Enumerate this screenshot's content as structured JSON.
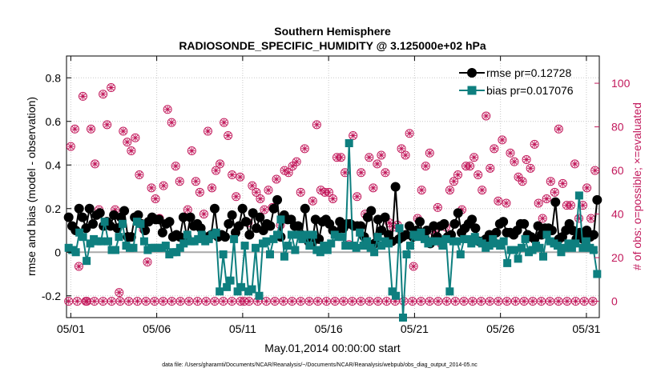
{
  "chart_data": {
    "type": "line",
    "title": "Southern Hemisphere",
    "subtitle": "RADIOSONDE_SPECIFIC_HUMIDITY @ 3.125000e+02 hPa",
    "xlabel": "May.01,2014 00:00:00 start",
    "ylabel": "rmse and bias (model - observation)",
    "ylabel_right": "# of obs: o=possible; ×=evaluated",
    "footnote": "data file: /Users/gharamti/Documents/NCAR/Reanalysis/~/Documents/NCAR/Reanalysis/webpub/obs_diag_output_2014-05.nc",
    "xlim": [
      0,
      124
    ],
    "ylim": [
      -0.3,
      0.9
    ],
    "ylim_right": [
      -7.5,
      112.5
    ],
    "x_tick_labels": [
      "05/01",
      "05/06",
      "05/11",
      "05/16",
      "05/21",
      "05/26",
      "05/31"
    ],
    "x_tick_positions": [
      1,
      21,
      41,
      61,
      81,
      101,
      121
    ],
    "y_tick_labels": [
      "-0.2",
      "0",
      "0.2",
      "0.4",
      "0.6",
      "0.8"
    ],
    "y_tick_values": [
      -0.2,
      0,
      0.2,
      0.4,
      0.6,
      0.8
    ],
    "y2_tick_labels": [
      "0",
      "20",
      "40",
      "60",
      "80",
      "100"
    ],
    "y2_tick_values": [
      0,
      20,
      40,
      60,
      80,
      100
    ],
    "zero_line": 0,
    "series": [
      {
        "name": "rmse",
        "legend": "rmse pr=0.12728",
        "color": "#000000",
        "values": [
          0.16,
          0.12,
          0.1,
          0.2,
          0.16,
          0.11,
          0.2,
          0.13,
          0.17,
          0.18,
          0.12,
          0.14,
          0.12,
          0.17,
          0.11,
          0.16,
          0.19,
          0.07,
          0.07,
          0.16,
          0.17,
          0.13,
          0.1,
          0.14,
          0.16,
          0.15,
          0.15,
          0.09,
          0.13,
          0.14,
          0.07,
          0.08,
          0.07,
          0.16,
          0.07,
          0.16,
          0.12,
          0.13,
          0.11,
          0.07,
          0.07,
          0.08,
          0.2,
          0.07,
          0.08,
          0.07,
          0.13,
          0.17,
          0.09,
          0.12,
          0.2,
          0.14,
          0.08,
          0.18,
          0.11,
          0.16,
          0.1,
          0.13,
          0.12,
          0.2,
          0.24,
          0.07,
          0.17,
          0.15,
          0.15,
          0.12,
          0.12,
          0.08,
          0.2,
          0.05,
          0.04,
          0.15,
          0.06,
          0.14,
          0.15,
          0.13,
          0.1,
          0.09,
          0.14,
          0.11,
          0.13,
          0.13,
          0.12,
          0.12,
          0.12,
          0.07,
          0.16,
          0.19,
          0.04,
          0.15,
          0.1,
          0.16,
          0.08,
          0.05,
          0.3,
          0.06,
          0.07,
          0.08,
          0.12,
          0.07,
          0.1,
          0.14,
          0.07,
          0.1,
          0.04,
          0.12,
          0.07,
          0.12,
          0.13,
          0.07,
          0.08,
          0.13,
          0.18,
          0.09,
          0.11,
          0.13,
          0.15,
          0.11,
          0.05,
          0.05,
          0.06,
          0.08,
          0.05,
          0.09,
          0.13,
          0.14,
          0.09,
          0.09,
          0.08,
          0.1,
          0.13,
          0.13,
          0.08,
          0.07,
          0.06,
          0.12,
          0.08,
          0.11,
          0.11,
          0.1,
          0.23,
          0.06,
          0.07,
          0.1,
          0.13,
          0.1,
          0.06,
          0.09,
          0.06,
          0.1,
          0.07,
          0.08,
          0.24
        ]
      },
      {
        "name": "bias",
        "legend": "bias pr=0.017076",
        "color": "#0e7f7f",
        "values": [
          0.02,
          0.01,
          0.0,
          0.09,
          0.07,
          -0.04,
          0.04,
          0.06,
          0.05,
          0.05,
          0.14,
          0.05,
          0.01,
          0.01,
          0.07,
          0.13,
          0.03,
          0.02,
          0.02,
          0.14,
          0.13,
          0.05,
          0.01,
          0.02,
          0.02,
          0.02,
          0.02,
          0.03,
          -0.01,
          0.0,
          0.0,
          0.02,
          0.04,
          0.08,
          0.05,
          0.05,
          0.06,
          0.08,
          0.05,
          0.06,
          0.08,
          0.09,
          -0.18,
          -0.01,
          -0.16,
          -0.13,
          0.06,
          -0.18,
          -0.16,
          0.03,
          -0.18,
          -0.17,
          0.02,
          -0.2,
          0.04,
          0.05,
          -0.01,
          0.06,
          0.08,
          0.15,
          -0.02,
          0.03,
          0.08,
          0.01,
          0.08,
          0.06,
          0.08,
          0.03,
          0.08,
          0.01,
          0.0,
          0.03,
          0.01,
          0.04,
          0.08,
          0.07,
          0.07,
          0.03,
          0.5,
          0.03,
          0.02,
          0.09,
          0.03,
          0.05,
          0.02,
          0.0,
          0.07,
          0.03,
          0.05,
          0.04,
          -0.18,
          -0.2,
          0.11,
          -0.3,
          -0.01,
          0.03,
          0.08,
          0.07,
          0.09,
          0.06,
          0.04,
          0.05,
          0.05,
          0.05,
          0.03,
          0.06,
          -0.18,
          0.05,
          0.05,
          -0.01,
          0.06,
          0.06,
          0.04,
          0.07,
          0.05,
          0.04,
          0.02,
          0.03,
          0.06,
          0.04,
          0.03,
          0.05,
          -0.05,
          0.01,
          0.01,
          -0.03,
          0.02,
          0.06,
          0.0,
          0.01,
          0.03,
          0.02,
          -0.02,
          0.08,
          0.05,
          0.04,
          0.03,
          0.0,
          0.02,
          0.04,
          0.02,
          0.04,
          0.26,
          0.02,
          0.05,
          0.02,
          0.01,
          -0.1
        ]
      }
    ],
    "obs_possible": [
      71,
      79,
      16,
      94,
      0,
      79,
      63,
      42,
      95,
      81,
      98,
      42,
      4,
      78,
      73,
      69,
      75,
      58,
      33,
      18,
      52,
      47,
      38,
      53,
      88,
      82,
      62,
      55,
      28,
      42,
      69,
      55,
      50,
      40,
      78,
      52,
      60,
      63,
      82,
      76,
      58,
      48,
      57,
      0,
      36,
      53,
      50,
      47,
      42,
      51,
      43,
      56,
      35,
      60,
      59,
      62,
      64,
      50,
      70,
      27,
      46,
      81,
      51,
      50,
      50,
      47,
      66,
      66,
      59,
      26,
      76,
      48,
      59,
      40,
      66,
      52,
      63,
      67,
      59,
      36,
      34,
      35,
      70,
      67,
      77,
      16,
      38,
      51,
      62,
      68,
      32,
      43,
      26,
      34,
      51,
      55,
      58,
      42,
      62,
      62,
      66,
      58,
      51,
      85,
      61,
      70,
      46,
      74,
      45,
      68,
      64,
      57,
      55,
      65,
      61,
      72,
      45,
      38,
      47,
      55,
      50,
      79,
      54,
      44,
      44,
      63,
      38,
      44,
      52,
      38,
      60
    ],
    "obs_evaluated": [
      71,
      79,
      16,
      94,
      0,
      79,
      63,
      42,
      95,
      81,
      98,
      42,
      4,
      78,
      73,
      69,
      75,
      58,
      33,
      18,
      52,
      47,
      38,
      53,
      88,
      82,
      62,
      55,
      28,
      42,
      69,
      55,
      50,
      40,
      78,
      52,
      60,
      63,
      82,
      76,
      58,
      48,
      57,
      0,
      36,
      53,
      50,
      47,
      42,
      51,
      43,
      56,
      35,
      60,
      59,
      62,
      64,
      50,
      70,
      27,
      46,
      81,
      51,
      50,
      50,
      47,
      66,
      66,
      59,
      26,
      76,
      48,
      59,
      40,
      66,
      52,
      63,
      67,
      59,
      36,
      34,
      35,
      70,
      67,
      77,
      16,
      38,
      51,
      62,
      68,
      32,
      43,
      26,
      34,
      51,
      55,
      58,
      42,
      62,
      62,
      66,
      58,
      51,
      85,
      61,
      70,
      46,
      74,
      45,
      68,
      64,
      57,
      55,
      65,
      61,
      72,
      45,
      38,
      47,
      55,
      50,
      79,
      54,
      44,
      44,
      63,
      38,
      44,
      52,
      38,
      60
    ],
    "obs_zero_row_count": 124
  }
}
